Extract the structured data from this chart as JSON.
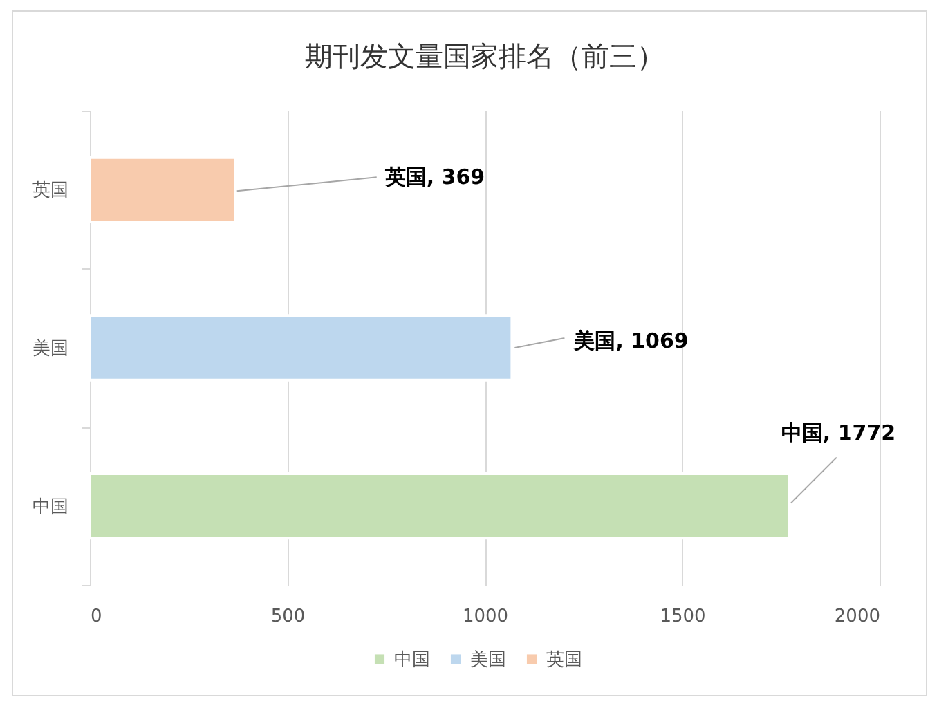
{
  "chart_data": {
    "type": "bar",
    "orientation": "horizontal",
    "stacked": true,
    "title": "期刊发文量国家排名（前三）",
    "categories": [
      "英国",
      "美国",
      "中国"
    ],
    "series": [
      {
        "name": "中国",
        "color": "#c5e0b4",
        "values": [
          null,
          null,
          1772
        ],
        "value_labels": [
          null,
          null,
          "中国, 1772"
        ]
      },
      {
        "name": "美国",
        "color": "#bdd7ee",
        "values": [
          null,
          1069,
          null
        ],
        "value_labels": [
          null,
          "美国, 1069",
          null
        ]
      },
      {
        "name": "英国",
        "color": "#f8cbad",
        "values": [
          369,
          null,
          null
        ],
        "value_labels": [
          "英国, 369",
          null,
          null
        ]
      }
    ],
    "xlim": [
      0,
      2000
    ],
    "xticks": [
      0,
      500,
      1000,
      1500,
      2000
    ],
    "grid": "x",
    "legend": "bottom"
  }
}
